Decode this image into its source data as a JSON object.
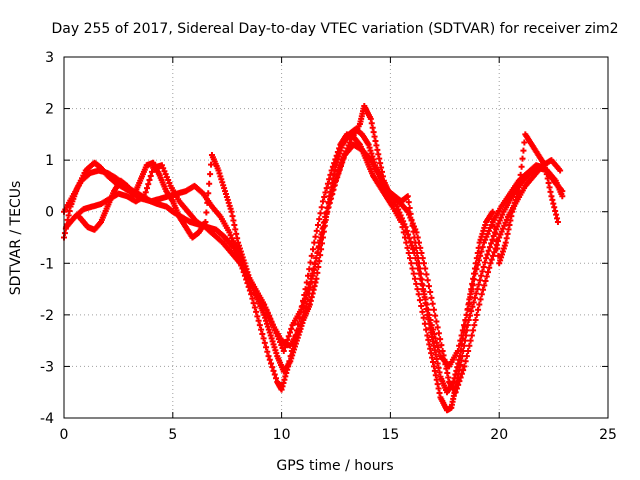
{
  "chart_data": {
    "type": "scatter",
    "title": "Day 255 of 2017, Sidereal Day-to-day VTEC variation (SDTVAR) for receiver zim2",
    "xlabel": "GPS time / hours",
    "ylabel": "SDTVAR / TECUs",
    "xlim": [
      0,
      25
    ],
    "ylim": [
      -4,
      3
    ],
    "xticks": [
      0,
      5,
      10,
      15,
      20,
      25
    ],
    "yticks": [
      -4,
      -3,
      -2,
      -1,
      0,
      1,
      2,
      3
    ],
    "grid": true,
    "marker": "+",
    "color": "#ff0000",
    "series": [
      {
        "x": [
          0.0,
          0.3,
          0.6,
          1.0,
          1.4,
          1.7,
          2.0,
          2.4,
          2.8,
          3.2,
          3.6,
          4.0,
          4.3,
          4.7,
          5.0,
          5.4,
          5.8,
          6.2,
          6.6,
          7.0,
          7.4,
          7.8,
          8.2,
          8.6,
          9.0,
          9.4,
          9.8,
          10.0,
          10.3,
          10.7,
          11.1,
          11.5,
          11.9,
          12.3,
          12.7,
          13.0,
          13.3,
          13.6,
          13.9,
          14.2,
          14.5,
          14.8,
          15.1,
          15.5,
          15.9,
          16.3,
          16.7,
          17.0,
          17.3,
          17.6,
          17.8,
          18.0,
          18.3,
          18.6,
          19.0,
          19.4,
          19.8,
          20.2,
          20.6,
          21.0,
          21.4,
          21.8,
          22.2,
          22.6,
          22.9
        ],
        "y": [
          -0.5,
          0.1,
          0.45,
          0.8,
          0.95,
          0.85,
          0.7,
          0.55,
          0.45,
          0.35,
          0.25,
          0.2,
          0.15,
          0.1,
          0.0,
          -0.1,
          -0.2,
          -0.25,
          -0.3,
          -0.35,
          -0.5,
          -0.7,
          -1.1,
          -1.6,
          -2.2,
          -2.8,
          -3.3,
          -3.45,
          -3.0,
          -2.3,
          -1.5,
          -0.6,
          0.2,
          0.8,
          1.3,
          1.5,
          1.45,
          1.3,
          1.0,
          0.7,
          0.5,
          0.3,
          0.1,
          -0.2,
          -0.9,
          -1.6,
          -2.4,
          -3.0,
          -3.6,
          -3.85,
          -3.8,
          -3.4,
          -2.8,
          -2.1,
          -1.5,
          -0.9,
          -0.4,
          0.0,
          0.3,
          0.55,
          0.75,
          0.85,
          0.8,
          0.6,
          0.3
        ]
      },
      {
        "x": [
          0.0,
          0.4,
          0.8,
          1.2,
          1.6,
          2.0,
          2.4,
          2.8,
          3.2,
          3.6,
          4.0,
          4.4,
          4.8,
          5.2,
          5.6,
          6.0,
          6.4,
          6.8,
          7.2,
          7.6,
          8.0,
          8.4,
          8.8,
          9.2,
          9.6,
          10.0,
          10.4,
          10.8,
          11.2,
          11.6,
          12.0,
          12.4,
          12.8,
          13.2,
          13.6,
          13.8,
          14.1,
          14.4,
          14.7,
          15.0,
          15.4,
          15.8,
          16.2,
          16.6,
          17.0,
          17.4,
          17.7,
          18.0,
          18.4,
          18.8,
          19.2,
          19.6,
          20.0,
          20.4,
          20.8,
          21.2,
          21.6,
          22.0,
          22.4,
          22.8
        ],
        "y": [
          0.0,
          0.3,
          0.6,
          0.75,
          0.8,
          0.75,
          0.65,
          0.5,
          0.4,
          0.3,
          0.2,
          0.25,
          0.3,
          0.35,
          0.4,
          0.5,
          0.35,
          0.1,
          -0.1,
          -0.4,
          -0.8,
          -1.2,
          -1.5,
          -1.8,
          -2.2,
          -2.5,
          -2.6,
          -2.3,
          -1.7,
          -0.9,
          -0.1,
          0.5,
          1.0,
          1.4,
          1.7,
          2.05,
          1.8,
          1.2,
          0.6,
          0.3,
          0.2,
          0.0,
          -0.4,
          -1.1,
          -1.9,
          -2.7,
          -3.3,
          -3.5,
          -3.0,
          -2.3,
          -1.6,
          -1.0,
          -0.5,
          -0.1,
          0.2,
          0.5,
          0.7,
          0.9,
          1.0,
          0.8
        ]
      },
      {
        "x": [
          0.1,
          0.5,
          0.9,
          1.3,
          1.7,
          2.1,
          2.5,
          2.9,
          3.3,
          3.7,
          4.1,
          4.5,
          4.9,
          5.3,
          5.7,
          6.1,
          6.5,
          6.9,
          7.3,
          7.7,
          8.1,
          8.5,
          8.9,
          9.3,
          9.7,
          10.1,
          10.5,
          10.9,
          11.3,
          11.7,
          12.1,
          12.5,
          12.9,
          13.3,
          13.7,
          14.1,
          14.5,
          14.9,
          15.3,
          15.7,
          16.1,
          16.5,
          16.9,
          17.3,
          17.7,
          18.1,
          18.5,
          18.9,
          19.3,
          19.7,
          20.1,
          20.5,
          20.9,
          21.3,
          21.7,
          22.1,
          22.5,
          22.9
        ],
        "y": [
          -0.3,
          -0.1,
          0.05,
          0.1,
          0.15,
          0.25,
          0.35,
          0.3,
          0.2,
          0.3,
          0.85,
          0.9,
          0.5,
          0.2,
          0.0,
          -0.2,
          -0.3,
          -0.45,
          -0.6,
          -0.8,
          -1.0,
          -1.3,
          -1.6,
          -1.9,
          -2.3,
          -2.7,
          -2.2,
          -1.9,
          -1.4,
          -0.7,
          0.0,
          0.6,
          1.1,
          1.3,
          1.2,
          1.0,
          0.7,
          0.4,
          0.1,
          -0.3,
          -0.8,
          -1.5,
          -2.2,
          -2.8,
          -3.0,
          -2.7,
          -2.0,
          -1.2,
          -0.6,
          -0.2,
          0.1,
          0.35,
          0.6,
          0.75,
          0.9,
          0.85,
          0.6,
          0.4
        ]
      },
      {
        "x": [
          0.7,
          0.9,
          1.1,
          1.4,
          1.7,
          2.0,
          2.3,
          2.6,
          2.9,
          3.2,
          3.5,
          3.8,
          4.1,
          4.4,
          4.7,
          5.0,
          5.3,
          5.6,
          5.9,
          6.2,
          6.5,
          6.8,
          7.1,
          7.4,
          7.7,
          8.0,
          8.3,
          8.6,
          8.9,
          9.2,
          9.5,
          9.8,
          10.1,
          10.4,
          10.7,
          11.0,
          11.3,
          11.6,
          11.9,
          12.2,
          12.5,
          12.8,
          13.1,
          13.4,
          13.7,
          14.0,
          14.3,
          14.6,
          14.9,
          15.2,
          15.5,
          15.8,
          16.1,
          16.4,
          16.7,
          17.0,
          17.3,
          17.6,
          17.9,
          18.2,
          18.5,
          18.8,
          19.1,
          19.4,
          19.7,
          20.0,
          20.3,
          20.6,
          20.9,
          21.2,
          21.5,
          21.8,
          22.1,
          22.4,
          22.7
        ],
        "y": [
          -0.1,
          -0.2,
          -0.3,
          -0.35,
          -0.2,
          0.1,
          0.4,
          0.6,
          0.5,
          0.3,
          0.6,
          0.9,
          0.95,
          0.7,
          0.4,
          0.2,
          -0.1,
          -0.3,
          -0.5,
          -0.4,
          -0.2,
          1.1,
          0.8,
          0.4,
          0.0,
          -0.6,
          -1.0,
          -1.4,
          -1.7,
          -2.0,
          -2.4,
          -2.8,
          -3.1,
          -2.9,
          -2.5,
          -2.1,
          -1.8,
          -1.3,
          -0.5,
          0.3,
          0.9,
          1.3,
          1.5,
          1.6,
          1.5,
          1.3,
          0.9,
          0.6,
          0.4,
          0.3,
          0.2,
          0.3,
          -0.5,
          -1.2,
          -2.0,
          -2.6,
          -3.2,
          -3.5,
          -3.3,
          -2.8,
          -2.0,
          -1.3,
          -0.6,
          -0.2,
          0.0,
          -1.0,
          -0.6,
          0.0,
          0.4,
          1.5,
          1.3,
          1.1,
          0.9,
          0.3,
          -0.2
        ]
      }
    ]
  }
}
